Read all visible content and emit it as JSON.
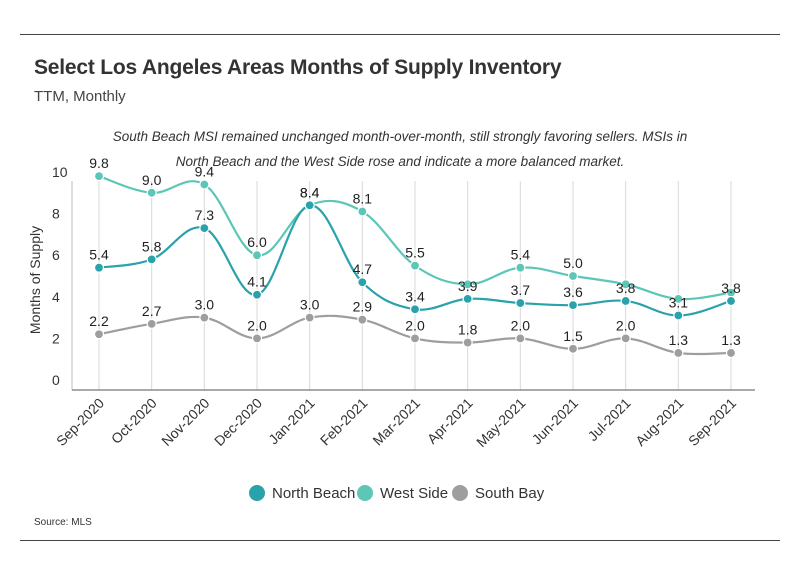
{
  "title": "Select Los Angeles Areas Months of Supply Inventory",
  "subtitle": "TTM, Monthly",
  "note": "South Beach MSI remained unchanged month-over-month, still strongly favoring sellers. MSIs in North Beach and the West Side rose and indicate a more balanced market.",
  "source": "Source:  MLS",
  "chart_data": {
    "type": "line",
    "ylabel": "Months of Supply",
    "xlabel": "",
    "ylim": [
      0,
      10
    ],
    "yticks": [
      0,
      2,
      4,
      6,
      8,
      10
    ],
    "grid": "vertical",
    "legend_position": "bottom",
    "categories": [
      "Sep-2020",
      "Oct-2020",
      "Nov-2020",
      "Dec-2020",
      "Jan-2021",
      "Feb-2021",
      "Mar-2021",
      "Apr-2021",
      "May-2021",
      "Jun-2021",
      "Jul-2021",
      "Aug-2021",
      "Sep-2021"
    ],
    "series": [
      {
        "name": "North Beach",
        "color": "#2aa2ab",
        "values": [
          5.4,
          5.8,
          7.3,
          4.1,
          8.4,
          4.7,
          3.4,
          3.9,
          3.7,
          3.6,
          3.8,
          3.1,
          3.8
        ]
      },
      {
        "name": "West Side",
        "color": "#5cc6b7",
        "values": [
          9.8,
          9.0,
          9.4,
          6.0,
          8.4,
          8.1,
          5.5,
          4.6,
          5.4,
          5.0,
          4.6,
          3.9,
          4.2
        ],
        "labels": [
          "9.8",
          "9.0",
          "9.4",
          "6.0",
          "8.4",
          "8.1",
          "5.5",
          "",
          "5.4",
          "5.0",
          "",
          "",
          ""
        ]
      },
      {
        "name": "South Bay",
        "color": "#9e9e9e",
        "values": [
          2.2,
          2.7,
          3.0,
          2.0,
          3.0,
          2.9,
          2.0,
          1.8,
          2.0,
          1.5,
          2.0,
          1.3,
          1.3
        ]
      }
    ]
  }
}
